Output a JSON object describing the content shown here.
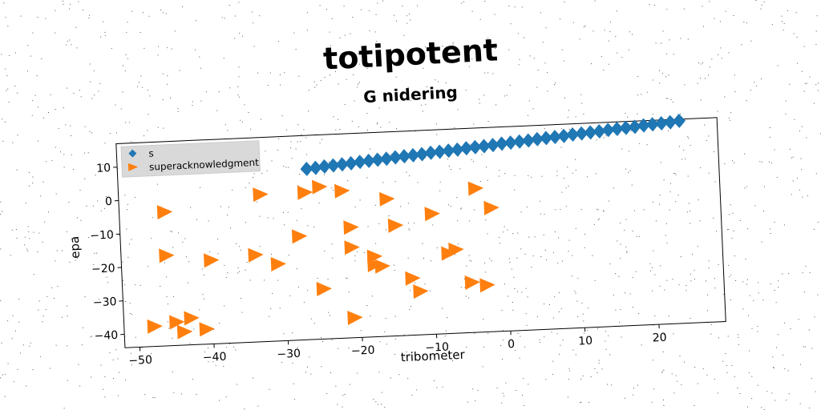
{
  "title": "totipotent",
  "subtitle": "G nidering",
  "chart_data": {
    "type": "scatter",
    "xlabel": "tribometer",
    "ylabel": "epa",
    "xlim": [
      -52,
      29
    ],
    "ylim": [
      -44,
      17
    ],
    "xticks": [
      -50,
      -40,
      -30,
      -20,
      -10,
      0,
      10,
      20
    ],
    "yticks": [
      10,
      0,
      -10,
      -20,
      -30,
      -40
    ],
    "legend_position": "top-left",
    "series": [
      {
        "name": "s",
        "marker": "diamond",
        "color": "#1f77b4",
        "x": [
          -26.5,
          -25.3,
          -24.1,
          -22.9,
          -21.7,
          -20.5,
          -19.3,
          -18.1,
          -16.9,
          -15.7,
          -14.5,
          -13.3,
          -12.1,
          -10.9,
          -9.7,
          -8.5,
          -7.3,
          -6.1,
          -4.9,
          -3.7,
          -2.5,
          -1.3,
          -0.1,
          1.1,
          2.3,
          3.5,
          4.7,
          5.9,
          7.1,
          8.3,
          9.5,
          10.7,
          11.9,
          13.1,
          14.3,
          15.5,
          16.7,
          17.9,
          19.1,
          20.3,
          21.5,
          22.7,
          23.9
        ],
        "y": [
          7.0,
          7.2,
          7.5,
          7.7,
          7.9,
          8.1,
          8.4,
          8.6,
          8.8,
          9.0,
          9.3,
          9.5,
          9.7,
          9.9,
          10.2,
          10.4,
          10.6,
          10.8,
          11.1,
          11.3,
          11.5,
          11.7,
          12.0,
          12.2,
          12.4,
          12.6,
          12.9,
          13.1,
          13.3,
          13.5,
          13.8,
          14.0,
          14.2,
          14.4,
          14.7,
          14.9,
          15.1,
          15.3,
          15.6,
          15.8,
          16.0,
          16.2,
          16.5
        ]
      },
      {
        "name": "superacknowledgment",
        "marker": "triangle-right",
        "color": "#ff7f0e",
        "x": [
          -46,
          -33,
          -27,
          -25,
          -22,
          -16,
          -4,
          -2,
          -10,
          -15,
          -21,
          -28,
          -46,
          -40,
          -34,
          -31,
          -21,
          -18,
          -7,
          -8,
          -18,
          -17,
          -13,
          -25,
          -12,
          -5,
          -3,
          -48,
          -45,
          -43,
          -44,
          -41,
          -21
        ],
        "y": [
          -4,
          0,
          0,
          1.5,
          0,
          -3,
          -1,
          -7,
          -8,
          -11,
          -11,
          -13,
          -17,
          -19,
          -18,
          -21,
          -17,
          -20,
          -19,
          -20,
          -22.5,
          -23,
          -27,
          -29,
          -31,
          -29,
          -30,
          -38,
          -37,
          -36,
          -40,
          -39.5,
          -38
        ]
      }
    ]
  }
}
